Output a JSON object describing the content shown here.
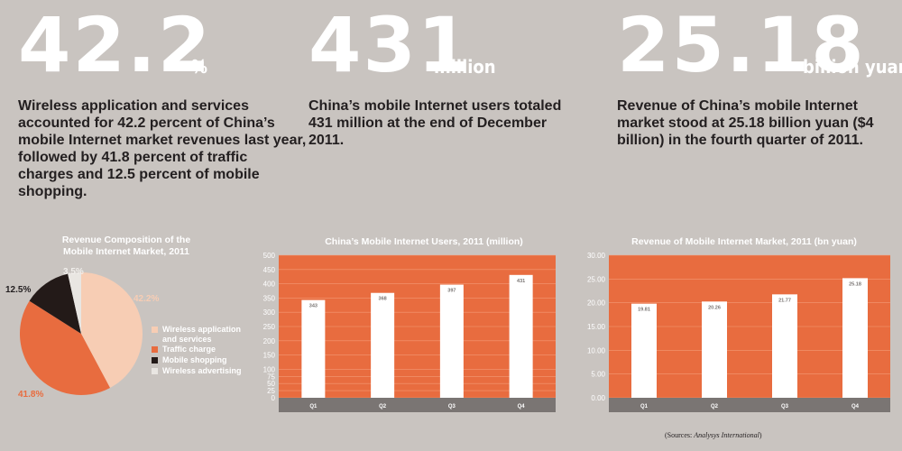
{
  "stats": [
    {
      "value": "42.2",
      "unit": "%",
      "text": "Wireless application and services accounted for 42.2 percent of China’s mobile Internet market revenues last year, followed by 41.8 percent of traffic charges and 12.5 percent of mobile shopping."
    },
    {
      "value": "431",
      "unit": "million",
      "text": "China’s mobile Internet users totaled 431 million at the end of December 2011."
    },
    {
      "value": "25.18",
      "unit": "billion yuan",
      "text": "Revenue of China’s mobile Internet market stood at 25.18 billion yuan ($4 billion) in the fourth quarter of 2011."
    }
  ],
  "colors": {
    "background": "#c9c4c0",
    "orange": "#e86c3f",
    "peach": "#f7cdb4",
    "dark": "#231a18",
    "light": "#e9e6e2",
    "axis_band": "#7a7573"
  },
  "chart_data": [
    {
      "type": "pie",
      "title_line1": "Revenue Composition of the",
      "title_line2": "Mobile Internet Market, 2011",
      "slices": [
        {
          "name": "Wireless application and services",
          "legend_line1": "Wireless application",
          "legend_line2": "and services",
          "value": 42.2,
          "label": "42.2%",
          "color": "#f7cdb4"
        },
        {
          "name": "Traffic charge",
          "legend_line1": "Traffic charge",
          "legend_line2": "",
          "value": 41.8,
          "label": "41.8%",
          "color": "#e86c3f"
        },
        {
          "name": "Mobile shopping",
          "legend_line1": "Mobile shopping",
          "legend_line2": "",
          "value": 12.5,
          "label": "12.5%",
          "color": "#231a18"
        },
        {
          "name": "Wireless advertising",
          "legend_line1": "Wireless advertising",
          "legend_line2": "",
          "value": 3.5,
          "label": "3.5%",
          "color": "#e9e6e2"
        }
      ],
      "legend_placement": "right"
    },
    {
      "type": "bar",
      "title": "China’s Mobile Internet Users, 2011 (million)",
      "categories": [
        "Q1",
        "Q2",
        "Q3",
        "Q4"
      ],
      "values": [
        343,
        368,
        397,
        431
      ],
      "value_labels": [
        "343",
        "368",
        "397",
        "431"
      ],
      "ylim": [
        0,
        500
      ],
      "yticks": [
        0,
        25,
        50,
        75,
        100,
        150,
        200,
        250,
        300,
        350,
        400,
        450,
        500
      ],
      "ytick_labels": [
        "0",
        "25",
        "50",
        "75",
        "100",
        "150",
        "200",
        "250",
        "300",
        "350",
        "400",
        "450",
        "500"
      ],
      "grid": true
    },
    {
      "type": "bar",
      "title": "Revenue of Mobile Internet Market, 2011 (bn yuan)",
      "categories": [
        "Q1",
        "Q2",
        "Q3",
        "Q4"
      ],
      "values": [
        19.81,
        20.26,
        21.77,
        25.18
      ],
      "value_labels": [
        "19.81",
        "20.26",
        "21.77",
        "25.18"
      ],
      "ylim": [
        0,
        30
      ],
      "yticks": [
        0,
        5,
        10,
        15,
        20,
        25,
        30
      ],
      "ytick_labels": [
        "0.00",
        "5.00",
        "10.00",
        "15.00",
        "20.00",
        "25.00",
        "30.00"
      ],
      "grid": true
    }
  ],
  "source": {
    "prefix": "(Sources: ",
    "name": "Analysys International",
    "suffix": ")"
  }
}
